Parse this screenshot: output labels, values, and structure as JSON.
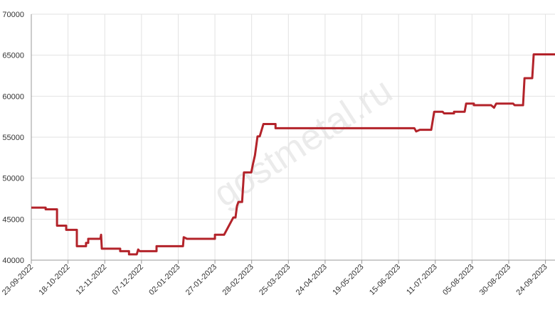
{
  "chart_data": {
    "type": "line",
    "watermark": "gostmetal.ru",
    "xlim": [
      0,
      14.26
    ],
    "xticks": [
      {
        "value": 0,
        "label": "23-09-2022"
      },
      {
        "value": 1,
        "label": "18-10-2022"
      },
      {
        "value": 2,
        "label": "12-11-2022"
      },
      {
        "value": 3,
        "label": "07-12-2022"
      },
      {
        "value": 4,
        "label": "02-01-2023"
      },
      {
        "value": 5,
        "label": "27-01-2023"
      },
      {
        "value": 6,
        "label": "28-02-2023"
      },
      {
        "value": 7,
        "label": "25-03-2023"
      },
      {
        "value": 8,
        "label": "24-04-2023"
      },
      {
        "value": 9,
        "label": "19-05-2023"
      },
      {
        "value": 10,
        "label": "15-06-2023"
      },
      {
        "value": 11,
        "label": "11-07-2023"
      },
      {
        "value": 12,
        "label": "05-08-2023"
      },
      {
        "value": 13,
        "label": "30-08-2023"
      },
      {
        "value": 14,
        "label": "24-09-2023"
      }
    ],
    "ylim": [
      40000,
      70000
    ],
    "yticks": [
      40000,
      45000,
      50000,
      55000,
      60000,
      65000,
      70000
    ],
    "grid": true,
    "series": [
      {
        "color": "#b3232a",
        "x": [
          0,
          0.39,
          0.39,
          0.7,
          0.7,
          0.95,
          0.95,
          1.24,
          1.24,
          1.49,
          1.49,
          1.55,
          1.55,
          1.88,
          1.9,
          1.92,
          2.42,
          2.42,
          2.66,
          2.66,
          2.87,
          2.91,
          2.95,
          3.41,
          3.41,
          4.13,
          4.15,
          4.24,
          5.0,
          5.0,
          5.25,
          5.5,
          5.56,
          5.6,
          5.64,
          5.74,
          5.79,
          5.99,
          6.03,
          6.09,
          6.16,
          6.22,
          6.32,
          6.65,
          6.65,
          10.43,
          10.48,
          10.58,
          10.89,
          10.97,
          11.2,
          11.24,
          11.51,
          11.51,
          11.8,
          11.84,
          12.05,
          12.05,
          12.52,
          12.6,
          12.66,
          13.12,
          13.16,
          13.39,
          13.43,
          13.64,
          13.68,
          14.26
        ],
        "values": [
          46400,
          46400,
          46200,
          46200,
          44200,
          44200,
          43700,
          43700,
          41700,
          41700,
          42100,
          42100,
          42600,
          42600,
          43100,
          41400,
          41400,
          41100,
          41100,
          40700,
          40700,
          41300,
          41100,
          41100,
          41700,
          41700,
          42800,
          42600,
          42600,
          43100,
          43100,
          45200,
          45200,
          46600,
          47100,
          47100,
          50700,
          50700,
          51600,
          52800,
          55100,
          55100,
          56600,
          56600,
          56100,
          56100,
          55700,
          55900,
          55900,
          58100,
          58100,
          57900,
          57900,
          58100,
          58100,
          59100,
          59100,
          58900,
          58900,
          58600,
          59100,
          59100,
          58900,
          58900,
          62200,
          62200,
          65100,
          65100
        ]
      }
    ]
  }
}
